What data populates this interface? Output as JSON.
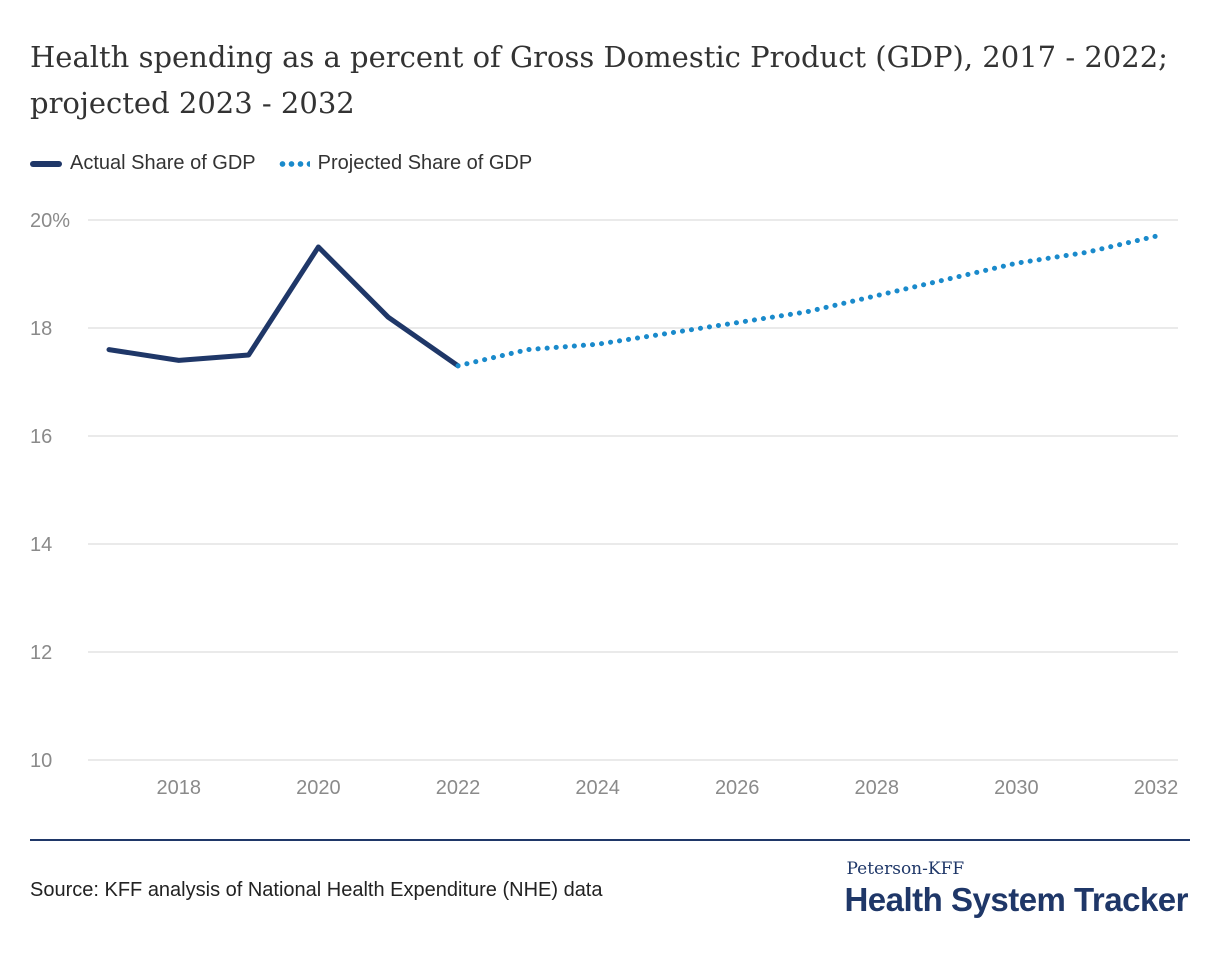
{
  "title": "Health spending as a percent of Gross Domestic Product (GDP), 2017 - 2022; projected 2023 - 2032",
  "legend": {
    "actual_label": "Actual Share of GDP",
    "projected_label": "Projected Share of GDP"
  },
  "source": "Source: KFF analysis of National Health Expenditure (NHE) data",
  "brand": {
    "top": "Peterson-KFF",
    "main": "Health System Tracker"
  },
  "colors": {
    "actual": "#1f3768",
    "projected": "#1a8acb",
    "grid": "#e3e3e3",
    "axis_text": "#8a8a8a"
  },
  "chart_data": {
    "type": "line",
    "title": "Health spending as a percent of Gross Domestic Product (GDP), 2017 - 2022; projected 2023 - 2032",
    "xlabel": "",
    "ylabel": "",
    "xlim": [
      2017,
      2032
    ],
    "ylim": [
      10,
      20
    ],
    "x_ticks": [
      2018,
      2020,
      2022,
      2024,
      2026,
      2028,
      2030,
      2032
    ],
    "y_ticks": [
      10,
      12,
      14,
      16,
      18,
      20
    ],
    "y_tick_labels": [
      "10",
      "12",
      "14",
      "16",
      "18",
      "20%"
    ],
    "grid": true,
    "legend_position": "top-left",
    "series": [
      {
        "name": "Actual Share of GDP",
        "style": "solid",
        "x": [
          2017,
          2018,
          2019,
          2020,
          2021,
          2022
        ],
        "y": [
          17.6,
          17.4,
          17.5,
          19.5,
          18.2,
          17.3
        ]
      },
      {
        "name": "Projected Share of GDP",
        "style": "dotted",
        "x": [
          2022,
          2023,
          2024,
          2025,
          2026,
          2027,
          2028,
          2029,
          2030,
          2031,
          2032
        ],
        "y": [
          17.3,
          17.6,
          17.7,
          17.9,
          18.1,
          18.3,
          18.6,
          18.9,
          19.2,
          19.4,
          19.7
        ]
      }
    ]
  }
}
